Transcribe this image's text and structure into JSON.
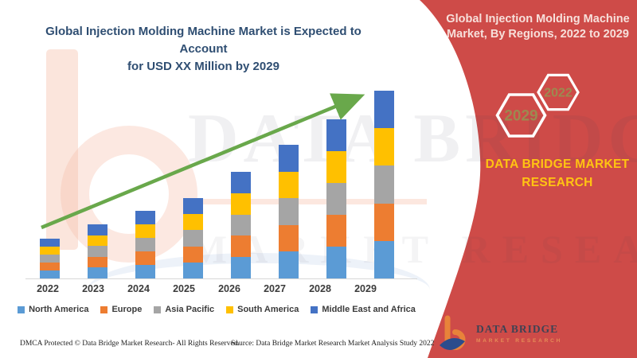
{
  "colors": {
    "sidebar_red": "#CE4B48",
    "title_navy": "#2F4E72",
    "sidebar_title_pink": "#F7E0DB",
    "brand_yellow": "#FFC412",
    "hex_label": "#9C8A50",
    "arrow_green": "#69A84B",
    "axis_text": "#3B3B3B"
  },
  "header_left": {
    "title_line1": "Global Injection Molding Machine Market is Expected to Account",
    "title_line2": "for USD XX Million by 2029"
  },
  "sidebar": {
    "title_line1": "Global Injection Molding Machine",
    "title_line2": "Market, By Regions, 2022 to 2029",
    "hexagons": [
      {
        "label": "2029"
      },
      {
        "label": "2022"
      }
    ],
    "brand_line1": "DATA BRIDGE MARKET",
    "brand_line2": "RESEARCH",
    "logo_name": "DATA BRIDGE",
    "logo_sub": "MARKET RESEARCH"
  },
  "watermark": {
    "line1": "DATA BRIDGE",
    "line2": "MARKET RESEARCH"
  },
  "chart_data": {
    "type": "stacked-bar",
    "title": "Global Injection Molding Machine Market is Expected to Account for USD XX Million by 2029",
    "categories": [
      "2022",
      "2023",
      "2024",
      "2025",
      "2026",
      "2027",
      "2028",
      "2029"
    ],
    "series": [
      {
        "name": "North America",
        "color": "#5B9BD5",
        "values": [
          10,
          13.6,
          17,
          20.2,
          26.8,
          33.6,
          40,
          47.2
        ]
      },
      {
        "name": "Europe",
        "color": "#ED7D31",
        "values": [
          10,
          13.6,
          17,
          20.2,
          26.8,
          33.6,
          40,
          47.2
        ]
      },
      {
        "name": "Asia Pacific",
        "color": "#A5A5A5",
        "values": [
          10,
          13.6,
          17,
          20.2,
          26.8,
          33.6,
          40,
          47.2
        ]
      },
      {
        "name": "South America",
        "color": "#FFC000",
        "values": [
          10,
          13.6,
          17,
          20.2,
          26.8,
          33.6,
          40,
          47.2
        ]
      },
      {
        "name": "Middle East and Africa",
        "color": "#4472C4",
        "values": [
          10,
          13.6,
          17,
          20.2,
          26.8,
          33.6,
          40,
          47.2
        ]
      }
    ],
    "xlabel": "",
    "ylabel": "",
    "value_axis_visible": false,
    "note": "No numeric axis shown (market sized as USD XX Million); values are relative estimates of segment size read from bar pixel heights, equal fifths per year.",
    "legend_position": "bottom",
    "grid": false,
    "trend_arrow": {
      "from_category": "2022",
      "to_category": "2029",
      "color": "#69A84B"
    }
  },
  "footer": {
    "left": "DMCA Protected © Data Bridge Market Research- All Rights Reserved.",
    "source": "Source: Data Bridge Market Research Market Analysis Study 2022"
  }
}
